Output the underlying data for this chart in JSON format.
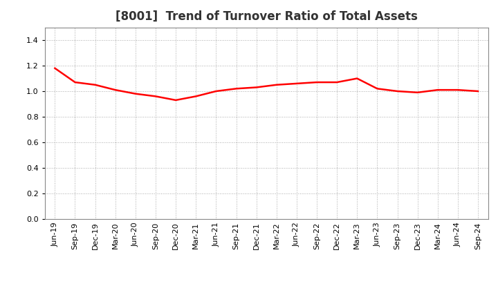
{
  "title": "[8001]  Trend of Turnover Ratio of Total Assets",
  "x_labels": [
    "Jun-19",
    "Sep-19",
    "Dec-19",
    "Mar-20",
    "Jun-20",
    "Sep-20",
    "Dec-20",
    "Mar-21",
    "Jun-21",
    "Sep-21",
    "Dec-21",
    "Mar-22",
    "Jun-22",
    "Sep-22",
    "Dec-22",
    "Mar-23",
    "Jun-23",
    "Sep-23",
    "Dec-23",
    "Mar-24",
    "Jun-24",
    "Sep-24"
  ],
  "y_values": [
    1.18,
    1.07,
    1.05,
    1.01,
    0.98,
    0.96,
    0.93,
    0.96,
    1.0,
    1.02,
    1.03,
    1.05,
    1.06,
    1.07,
    1.07,
    1.1,
    1.02,
    1.0,
    0.99,
    1.01,
    1.01,
    1.0
  ],
  "line_color": "#FF0000",
  "line_width": 1.8,
  "ylim": [
    0.0,
    1.5
  ],
  "yticks": [
    0.0,
    0.2,
    0.4,
    0.6,
    0.8,
    1.0,
    1.2,
    1.4
  ],
  "background_color": "#ffffff",
  "plot_bg_color": "#ffffff",
  "grid_color": "#aaaaaa",
  "title_fontsize": 12,
  "tick_fontsize": 8,
  "title_color": "#333333"
}
